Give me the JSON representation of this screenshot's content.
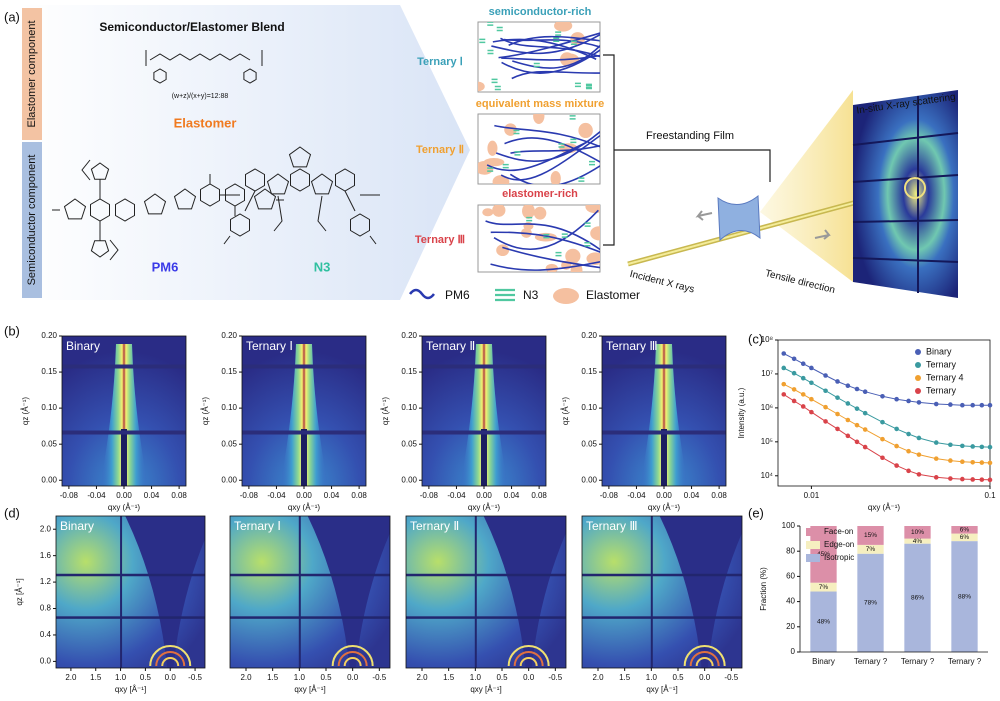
{
  "figure": {
    "panel_labels": [
      "(a)",
      "(b)",
      "(c)",
      "(d)",
      "(e)"
    ],
    "schematic": {
      "side_labels": [
        "Elastomer component",
        "Semiconductor component"
      ],
      "blend_title": "Semiconductor/Elastomer Blend",
      "ratio": "(w+z)/(x+y)=12:88",
      "elastomer": "Elastomer",
      "molecules": [
        "PM6",
        "N3"
      ],
      "ternaries": [
        {
          "heading": "semiconductor-rich",
          "label": "Ternary Ⅰ"
        },
        {
          "heading": "equivalent mass mixture",
          "label": "Ternary Ⅱ"
        },
        {
          "heading": "elastomer-rich",
          "label": "Ternary Ⅲ"
        }
      ],
      "legend": [
        "PM6",
        "N3",
        "Elastomer"
      ],
      "film": "Freestanding Film",
      "scattering": "In-situ X-ray scattering",
      "incident": "Incident X rays",
      "tensile": "Tensile direction"
    }
  },
  "chart_data": [
    {
      "type": "heatmap",
      "title": "Binary",
      "x_label": "qxy (Å⁻¹)",
      "y_label": "qz (Å⁻¹)",
      "xlim": [
        -0.09,
        0.09
      ],
      "ylim": [
        -0.008,
        0.2
      ],
      "xticks": [
        -0.08,
        -0.04,
        {
          "value": 0,
          "label": "0.00"
        },
        0.04,
        0.08
      ],
      "yticks": [
        {
          "value": 0,
          "label": "0.00"
        },
        0.05,
        {
          "value": 0.1,
          "label": "0.10"
        },
        0.15,
        {
          "value": 0.2,
          "label": "0.20"
        }
      ]
    },
    {
      "type": "heatmap",
      "title": "Ternary Ⅰ",
      "x_label": "qxy (Å⁻¹)",
      "y_label": "qz (Å⁻¹)",
      "xlim": [
        -0.09,
        0.09
      ],
      "ylim": [
        -0.008,
        0.2
      ],
      "xticks": [
        -0.08,
        -0.04,
        {
          "value": 0,
          "label": "0.00"
        },
        0.04,
        0.08
      ],
      "yticks": [
        {
          "value": 0,
          "label": "0.00"
        },
        0.05,
        {
          "value": 0.1,
          "label": "0.10"
        },
        0.15,
        {
          "value": 0.2,
          "label": "0.20"
        }
      ]
    },
    {
      "type": "heatmap",
      "title": "Ternary Ⅱ",
      "x_label": "qxy (Å⁻¹)",
      "y_label": "qz (Å⁻¹)",
      "xlim": [
        -0.09,
        0.09
      ],
      "ylim": [
        -0.008,
        0.2
      ],
      "xticks": [
        -0.08,
        -0.04,
        {
          "value": 0,
          "label": "0.00"
        },
        0.04,
        0.08
      ],
      "yticks": [
        {
          "value": 0,
          "label": "0.00"
        },
        0.05,
        {
          "value": 0.1,
          "label": "0.10"
        },
        0.15,
        {
          "value": 0.2,
          "label": "0.20"
        }
      ]
    },
    {
      "type": "heatmap",
      "title": "Ternary Ⅲ",
      "x_label": "qxy (Å⁻¹)",
      "y_label": "qz (Å⁻¹)",
      "xlim": [
        -0.09,
        0.09
      ],
      "ylim": [
        -0.008,
        0.2
      ],
      "xticks": [
        -0.08,
        -0.04,
        {
          "value": 0,
          "label": "0.00"
        },
        0.04,
        0.08
      ],
      "yticks": [
        {
          "value": 0,
          "label": "0.00"
        },
        0.05,
        {
          "value": 0.1,
          "label": "0.10"
        },
        0.15,
        {
          "value": 0.2,
          "label": "0.20"
        }
      ]
    },
    {
      "type": "line",
      "x_label": "qxy (Å⁻¹)",
      "y_label": "Intensity (a.u.)",
      "xscale": "log",
      "yscale": "log",
      "xlim": [
        0.0065,
        0.1
      ],
      "ylim": [
        5000,
        100000000
      ],
      "xticks": [
        0.01,
        0.1
      ],
      "yticks": [
        {
          "value": 10000,
          "label": "10⁴"
        },
        {
          "value": 100000,
          "label": "10⁵"
        },
        {
          "value": 1000000,
          "label": "10⁶"
        },
        {
          "value": 10000000,
          "label": "10⁷"
        },
        {
          "value": 100000000,
          "label": "10⁸"
        }
      ],
      "x": [
        0.007,
        0.008,
        0.009,
        0.01,
        0.012,
        0.014,
        0.016,
        0.018,
        0.02,
        0.025,
        0.03,
        0.035,
        0.04,
        0.05,
        0.06,
        0.07,
        0.08,
        0.09,
        0.1
      ],
      "series": [
        {
          "name": "Binary",
          "color": "#4a5fb5",
          "values": [
            40000000,
            28000000,
            20000000,
            15000000,
            9000000,
            6000000,
            4500000,
            3600000,
            3000000,
            2200000,
            1800000,
            1600000,
            1450000,
            1300000,
            1250000,
            1200000,
            1200000,
            1200000,
            1200000
          ]
        },
        {
          "name": "Ternary",
          "color": "#3a9aa0",
          "values": [
            15000000,
            10500000,
            7500000,
            5500000,
            3200000,
            2000000,
            1350000,
            950000,
            700000,
            380000,
            240000,
            170000,
            130000,
            95000,
            82000,
            76000,
            73000,
            71000,
            70000
          ]
        },
        {
          "name": "Ternary 4",
          "color": "#f0a030",
          "values": [
            5000000,
            3500000,
            2500000,
            1800000,
            1050000,
            660000,
            440000,
            310000,
            230000,
            120000,
            75000,
            53000,
            42000,
            32000,
            28000,
            26000,
            25000,
            24500,
            24000
          ]
        },
        {
          "name": "Ternary",
          "color": "#d9434a",
          "values": [
            2500000,
            1600000,
            1100000,
            750000,
            400000,
            240000,
            150000,
            100000,
            70000,
            34000,
            20000,
            14000,
            11000,
            9000,
            8300,
            8000,
            7800,
            7700,
            7600
          ]
        }
      ]
    },
    {
      "type": "heatmap",
      "title": "Binary",
      "x_label": "qxy [Å⁻¹]",
      "y_label": "qz [Å⁻¹]",
      "xlim": [
        2.3,
        -0.7
      ],
      "ylim": [
        -0.1,
        2.2
      ],
      "xticks": [
        {
          "value": 2,
          "label": "2.0"
        },
        1.5,
        {
          "value": 1,
          "label": "1.0"
        },
        0.5,
        {
          "value": 0,
          "label": "0.0"
        },
        -0.5
      ],
      "yticks": [
        {
          "value": 0,
          "label": "0.0"
        },
        0.4,
        0.8,
        1.2,
        1.6,
        {
          "value": 2,
          "label": "2.0"
        }
      ]
    },
    {
      "type": "heatmap",
      "title": "Ternary Ⅰ",
      "x_label": "qxy [Å⁻¹]",
      "xlim": [
        2.3,
        -0.7
      ],
      "ylim": [
        -0.1,
        2.2
      ],
      "xticks": [
        {
          "value": 2,
          "label": "2.0"
        },
        1.5,
        {
          "value": 1,
          "label": "1.0"
        },
        0.5,
        {
          "value": 0,
          "label": "0.0"
        },
        -0.5
      ],
      "yticks": []
    },
    {
      "type": "heatmap",
      "title": "Ternary Ⅱ",
      "x_label": "qxy [Å⁻¹]",
      "xlim": [
        2.3,
        -0.7
      ],
      "ylim": [
        -0.1,
        2.2
      ],
      "xticks": [
        {
          "value": 2,
          "label": "2.0"
        },
        1.5,
        {
          "value": 1,
          "label": "1.0"
        },
        0.5,
        {
          "value": 0,
          "label": "0.0"
        },
        -0.5
      ],
      "yticks": []
    },
    {
      "type": "heatmap",
      "title": "Ternary Ⅲ",
      "x_label": "qxy [Å⁻¹]",
      "xlim": [
        2.3,
        -0.7
      ],
      "ylim": [
        -0.1,
        2.2
      ],
      "xticks": [
        {
          "value": 2,
          "label": "2.0"
        },
        1.5,
        {
          "value": 1,
          "label": "1.0"
        },
        0.5,
        {
          "value": 0,
          "label": "0.0"
        },
        -0.5
      ],
      "yticks": []
    },
    {
      "type": "stacked-bar",
      "y_label": "Fraction (%)",
      "categories": [
        "Binary",
        "Ternary ?",
        "Ternary ?",
        "Ternary ?"
      ],
      "ylim": [
        0,
        100
      ],
      "yticks": [
        0,
        20,
        40,
        60,
        80,
        100
      ],
      "series": [
        {
          "name": "Isotropic",
          "color": "#a9b6dc",
          "values": [
            48,
            78,
            86,
            88
          ],
          "value_labels": [
            "48%",
            "78%",
            "86%",
            "88%"
          ]
        },
        {
          "name": "Edge-on",
          "color": "#f6efc0",
          "values": [
            7,
            7,
            4,
            6
          ],
          "value_labels": [
            "7%",
            "7%",
            "4%",
            "6%"
          ]
        },
        {
          "name": "Face-on",
          "color": "#dc8fa8",
          "values": [
            45,
            15,
            10,
            6
          ],
          "value_labels": [
            "45%",
            "15%",
            "10%",
            "6%"
          ]
        }
      ]
    }
  ]
}
